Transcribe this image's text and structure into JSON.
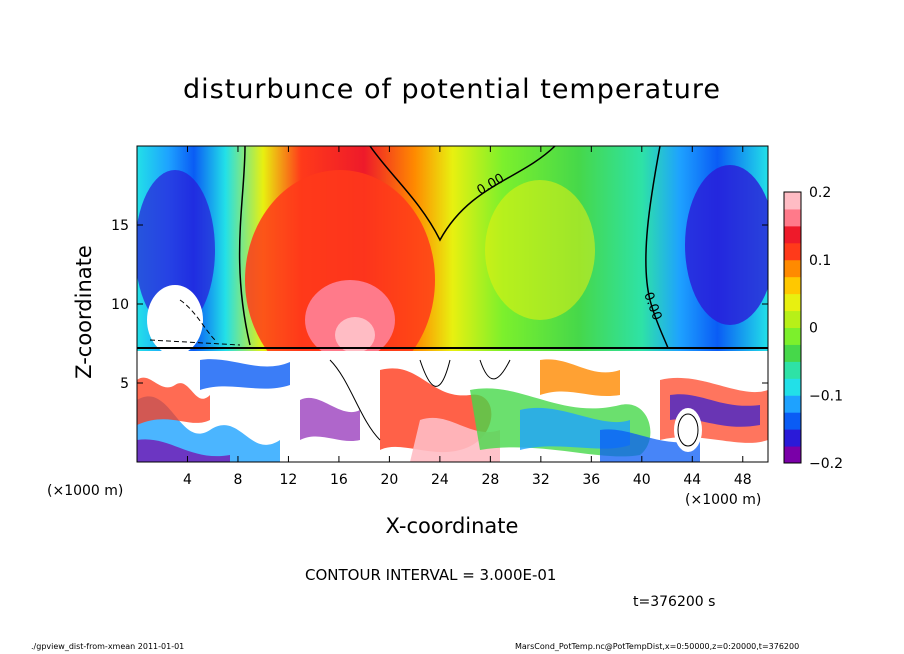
{
  "chart_data": {
    "type": "heatmap",
    "title": "disturbunce of potential temperature",
    "xlabel": "X-coordinate",
    "ylabel": "Z-coordinate",
    "x_unit": "(×1000 m)",
    "xlim": [
      0,
      50
    ],
    "ylim": [
      0,
      20
    ],
    "x_ticks": [
      4,
      8,
      12,
      16,
      20,
      24,
      28,
      32,
      36,
      40,
      44,
      48
    ],
    "y_ticks": [
      5,
      10,
      15
    ],
    "colorbar": {
      "range": [
        -0.2,
        0.2
      ],
      "tick_values": [
        0.2,
        0.1,
        0,
        -0.1,
        -0.2
      ],
      "tick_labels": [
        "0.2",
        "0.1",
        "0",
        "−0.1",
        "−0.2"
      ],
      "colors": [
        "#7a00a8",
        "#2a1ad8",
        "#0a5cf5",
        "#1ea2ff",
        "#22e0e8",
        "#2ee2a6",
        "#46d84a",
        "#7cf02c",
        "#b7f018",
        "#e8f010",
        "#ffc800",
        "#ff8a00",
        "#ff3a1a",
        "#ee1a2a",
        "#ff7a8a",
        "#ffbcc4"
      ]
    },
    "contour_labels": [
      "0.00",
      "0.00"
    ],
    "contour_interval": "CONTOUR INTERVAL = 3.000E-01",
    "time": "t=376200 s"
  },
  "footer": {
    "left": "./gpview_dist-from-xmean  2011-01-01",
    "right": "MarsCond_PotTemp.nc@PotTempDist,x=0:50000,z=0:20000,t=376200"
  }
}
